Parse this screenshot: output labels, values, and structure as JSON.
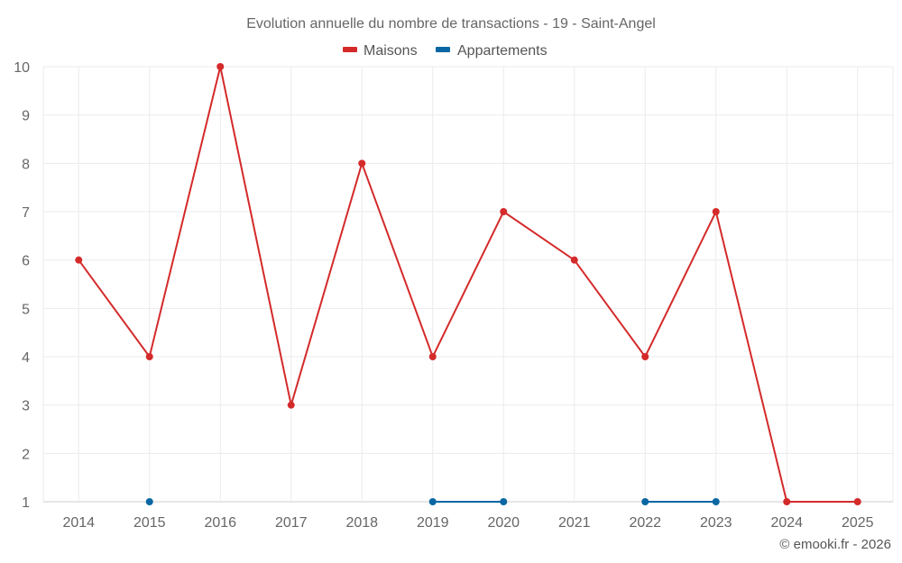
{
  "chart_data": {
    "type": "line",
    "title": "Evolution annuelle du nombre de transactions - 19 - Saint-Angel",
    "categories": [
      "2014",
      "2015",
      "2016",
      "2017",
      "2018",
      "2019",
      "2020",
      "2021",
      "2022",
      "2023",
      "2024",
      "2025"
    ],
    "series": [
      {
        "name": "Maisons",
        "color": "#d42a2a",
        "values": [
          6,
          4,
          10,
          3,
          8,
          4,
          7,
          6,
          4,
          7,
          1,
          1
        ]
      },
      {
        "name": "Appartements",
        "color": "#0a67a3",
        "values": [
          null,
          1,
          null,
          null,
          null,
          1,
          1,
          null,
          1,
          1,
          null,
          null
        ]
      }
    ],
    "ylim": [
      1,
      10
    ],
    "yticks": [
      1,
      2,
      3,
      4,
      5,
      6,
      7,
      8,
      9,
      10
    ],
    "xlabel": "",
    "ylabel": "",
    "grid": true,
    "legend_position": "top-center"
  },
  "credit": "© emooki.fr - 2026"
}
